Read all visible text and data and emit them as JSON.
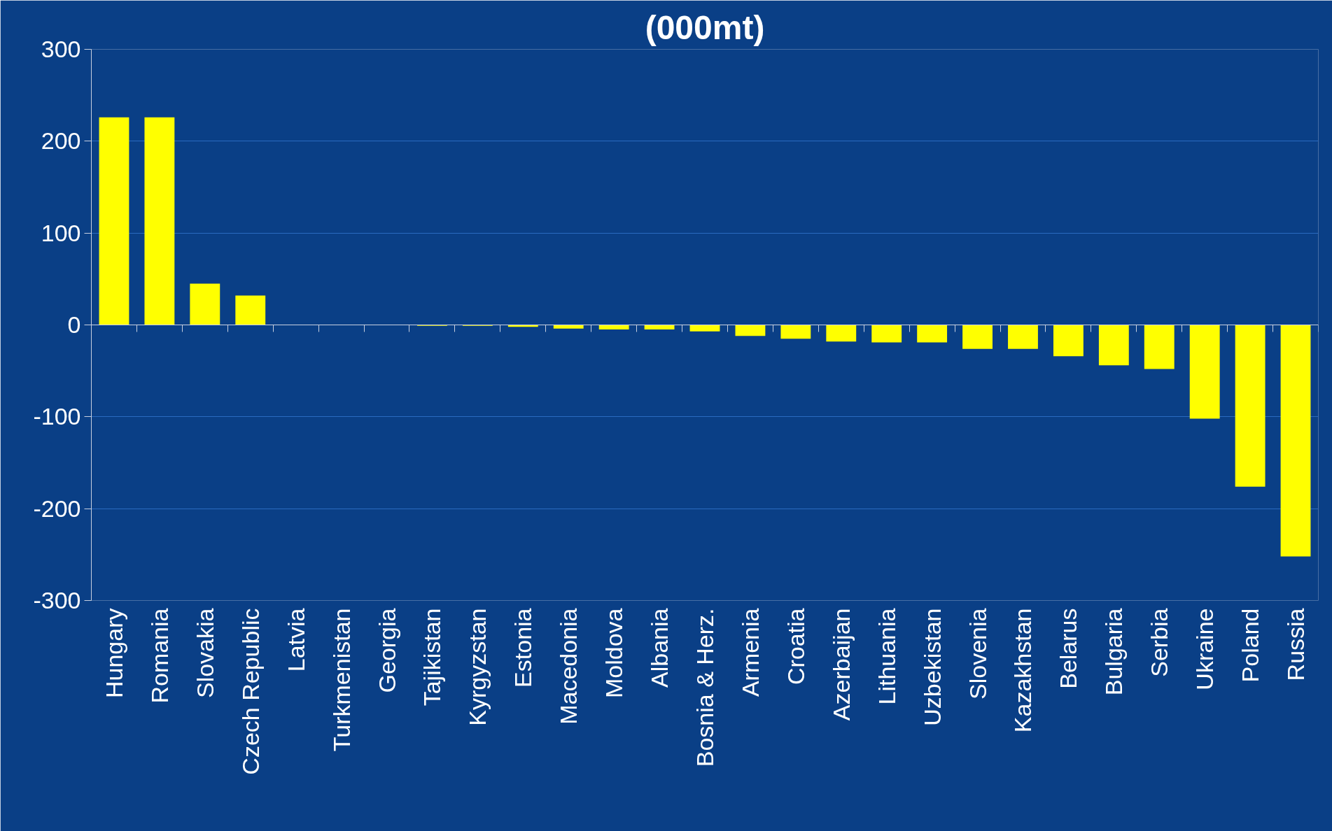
{
  "chart_data": {
    "type": "bar",
    "title": "(000mt)",
    "categories": [
      "Hungary",
      "Romania",
      "Slovakia",
      "Czech Republic",
      "Latvia",
      "Turkmenistan",
      "Georgia",
      "Tajikistan",
      "Kyrgyzstan",
      "Estonia",
      "Macedonia",
      "Moldova",
      "Albania",
      "Bosnia & Herz.",
      "Armenia",
      "Croatia",
      "Azerbaijan",
      "Lithuania",
      "Uzbekistan",
      "Slovenia",
      "Kazakhstan",
      "Belarus",
      "Bulgaria",
      "Serbia",
      "Ukraine",
      "Poland",
      "Russia"
    ],
    "values": [
      226,
      226,
      45,
      32,
      0,
      0,
      0,
      -1,
      -1,
      -2,
      -4,
      -5,
      -5,
      -7,
      -12,
      -15,
      -18,
      -19,
      -19,
      -26,
      -26,
      -34,
      -44,
      -48,
      -102,
      -176,
      -252
    ],
    "color": "#ffff00",
    "ylim": [
      -300,
      300
    ],
    "yticks": [
      -300,
      -200,
      -100,
      0,
      100,
      200,
      300
    ],
    "grid": "y"
  }
}
